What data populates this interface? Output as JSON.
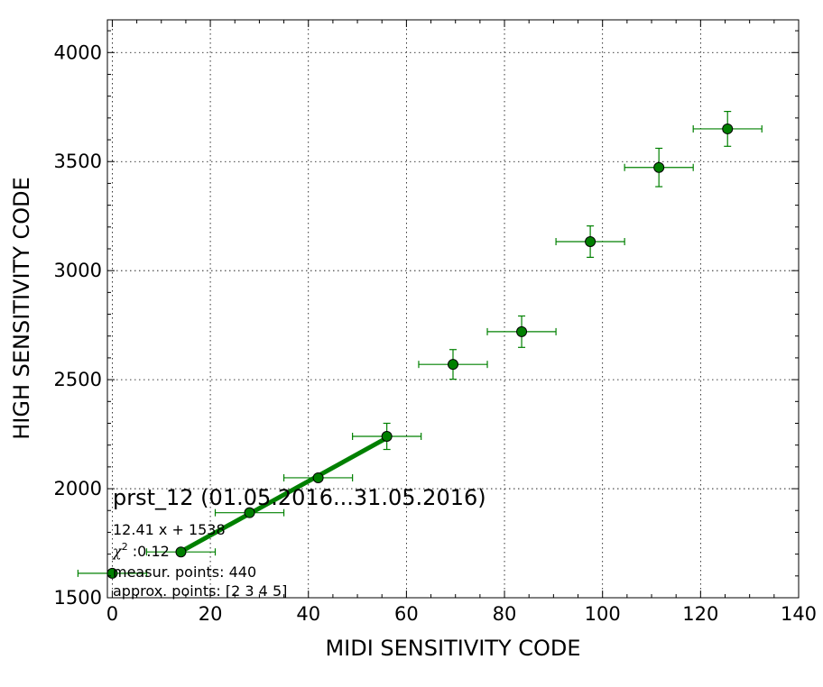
{
  "chart_data": {
    "type": "scatter",
    "title": "prst_12 (01.05.2016...31.05.2016)",
    "xlabel": "MIDI SENSITIVITY CODE",
    "ylabel": "HIGH SENSITIVITY CODE",
    "xlim": [
      -1,
      140
    ],
    "ylim": [
      1500,
      4150
    ],
    "xticks": [
      0,
      20,
      40,
      60,
      80,
      100,
      120,
      140
    ],
    "yticks": [
      1500,
      2000,
      2500,
      3000,
      3500,
      4000
    ],
    "xtick_labels": [
      "0",
      "20",
      "40",
      "60",
      "80",
      "100",
      "120",
      "140"
    ],
    "ytick_labels": [
      "1500",
      "2000",
      "2500",
      "3000",
      "3500",
      "4000"
    ],
    "grid": true,
    "colors": {
      "series": "#008000",
      "frame": "#000000"
    },
    "series": [
      {
        "type": "errorbar",
        "x": [
          0,
          14,
          28,
          42,
          56,
          69.5,
          83.5,
          97.5,
          111.5,
          125.5
        ],
        "y": [
          1612,
          1710,
          1890,
          2050,
          2240,
          2570,
          2720,
          3133,
          3473,
          3650
        ],
        "xerr": [
          7,
          7,
          7,
          7,
          7,
          7,
          7,
          7,
          7,
          7
        ],
        "yerr": [
          0,
          0,
          0,
          0,
          60,
          68,
          72,
          72,
          88,
          80
        ]
      }
    ],
    "fit_line": {
      "slope": 12.41,
      "intercept": 1538,
      "x_range": [
        14,
        56
      ]
    },
    "annotations": {
      "fit": "12.41 x + 1538",
      "chi2_symbol": "χ",
      "chi2_exp": "2",
      "chi2_value": " :0.12",
      "measur": "measur. points: 440",
      "approx": "approx. points: [2 3 4 5]"
    }
  }
}
